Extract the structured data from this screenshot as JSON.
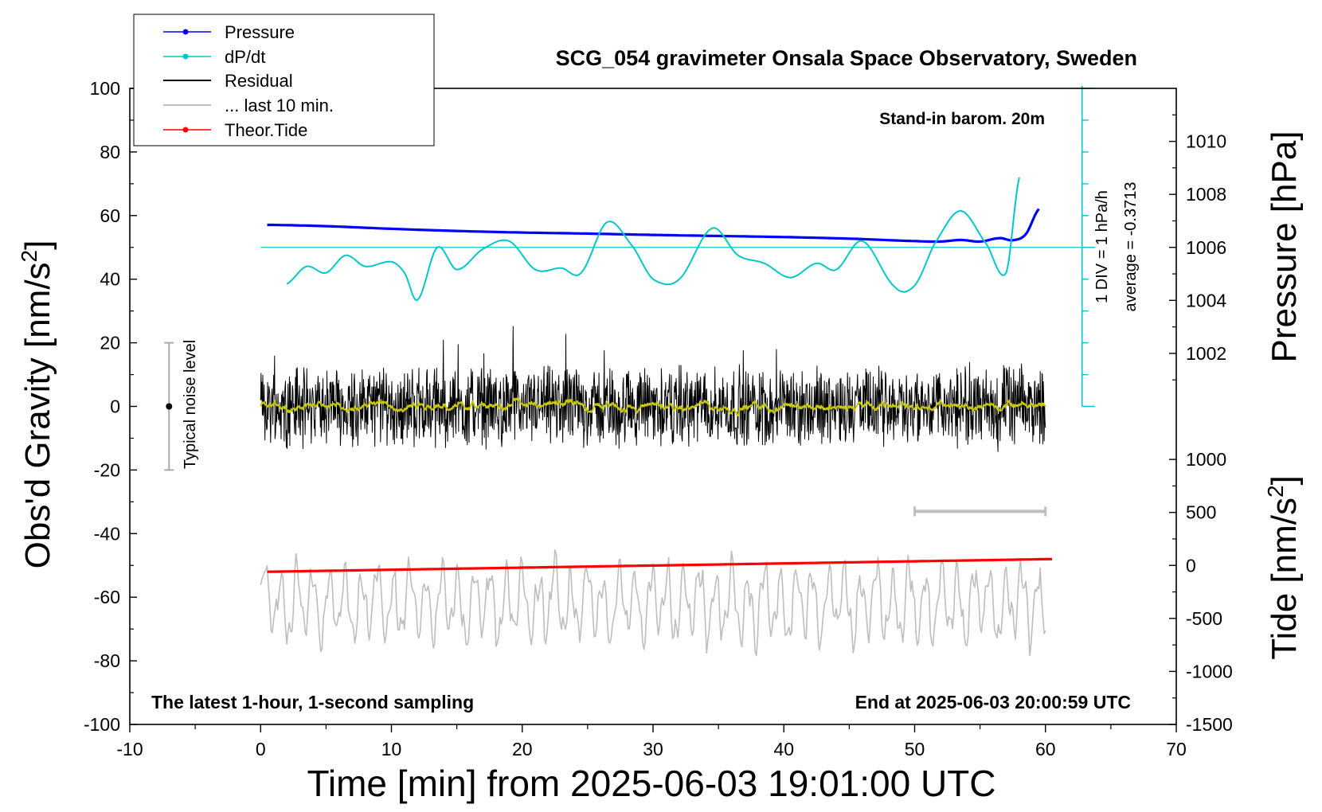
{
  "chart_data": {
    "type": "line",
    "title": "SCG_054 gravimeter Onsala Space Observatory, Sweden",
    "xlabel": "Time [min] from 2025-06-03 19:01:00 UTC",
    "ylabel": "Obs'd Gravity [nm/s",
    "ylabel_sup": "2",
    "ylabel_close": "]",
    "y2label": "Pressure [hPa]",
    "y3label": "Tide [nm/s",
    "y3label_sup": "2",
    "y3label_close": "]",
    "xlim": [
      -10,
      70
    ],
    "ylim": [
      -100,
      100
    ],
    "pressure_lim": [
      1000,
      1012
    ],
    "tide_lim": [
      -1500,
      1500
    ],
    "x_ticks": [
      "-10",
      "0",
      "10",
      "20",
      "30",
      "40",
      "50",
      "60",
      "70"
    ],
    "y_ticks": [
      "-100",
      "-80",
      "-60",
      "-40",
      "-20",
      "0",
      "20",
      "40",
      "60",
      "80",
      "100"
    ],
    "pressure_ticks": [
      "1002",
      "1004",
      "1006",
      "1008",
      "1010"
    ],
    "tide_ticks": [
      "-1500",
      "-1000",
      "-500",
      "0",
      "500",
      "1000"
    ],
    "grid": false,
    "legend_position": "top-left",
    "legend": [
      "Pressure",
      "dP/dt",
      "Residual",
      "... last 10 min.",
      "Theor.Tide"
    ],
    "colors": {
      "pressure": "#0000ff",
      "dpdt": "#00c8c8",
      "residual": "#000000",
      "last10": "#bebebe",
      "tide": "#ff0000",
      "smooth": "#c8c800",
      "noise": "#aaaaaa"
    },
    "annotations": {
      "barometer": "Stand-in barom. 20m",
      "div_label": "1 DIV = 1 hPa/h",
      "average_label": "average = -0.3713",
      "noise_label": "Typical noise level",
      "bottom_left": "The latest 1-hour, 1-second sampling",
      "bottom_right": "End at 2025-06-03 20:00:59 UTC"
    },
    "noise_level": {
      "x": -7,
      "center": 0,
      "halfwidth": 20
    },
    "last10_bar": {
      "x0": 50,
      "x1": 60,
      "y": -33
    },
    "dpdt_zero_line_y": 50,
    "series": [
      {
        "name": "Pressure",
        "x": [
          0.5,
          5,
          10,
          15,
          20,
          25,
          30,
          35,
          40,
          45,
          50,
          52,
          53.5,
          55,
          56.5,
          57.5,
          58.5,
          59.5
        ],
        "y": [
          1006.85,
          1006.8,
          1006.7,
          1006.62,
          1006.56,
          1006.52,
          1006.47,
          1006.43,
          1006.39,
          1006.33,
          1006.24,
          1006.22,
          1006.28,
          1006.22,
          1006.35,
          1006.27,
          1006.5,
          1007.45
        ]
      },
      {
        "name": "dP/dt",
        "x": [
          2,
          3.5,
          5,
          6.5,
          8,
          10,
          11,
          12,
          13.5,
          15,
          17,
          19,
          21,
          23,
          24.5,
          26.5,
          28.5,
          30,
          32,
          34.5,
          36.5,
          38.5,
          40.5,
          42.5,
          44,
          46,
          48.5,
          50,
          51.5,
          53.5,
          55.5,
          57,
          58
        ],
        "y": [
          38.5,
          44,
          42,
          47.5,
          44,
          45.5,
          42,
          33.5,
          50,
          43,
          49.5,
          52,
          43,
          43.5,
          42,
          58,
          50,
          40,
          40,
          56,
          47.5,
          45,
          40.5,
          45,
          43,
          52,
          37.5,
          38,
          51,
          61.5,
          51,
          42,
          72
        ]
      }
    ]
  }
}
